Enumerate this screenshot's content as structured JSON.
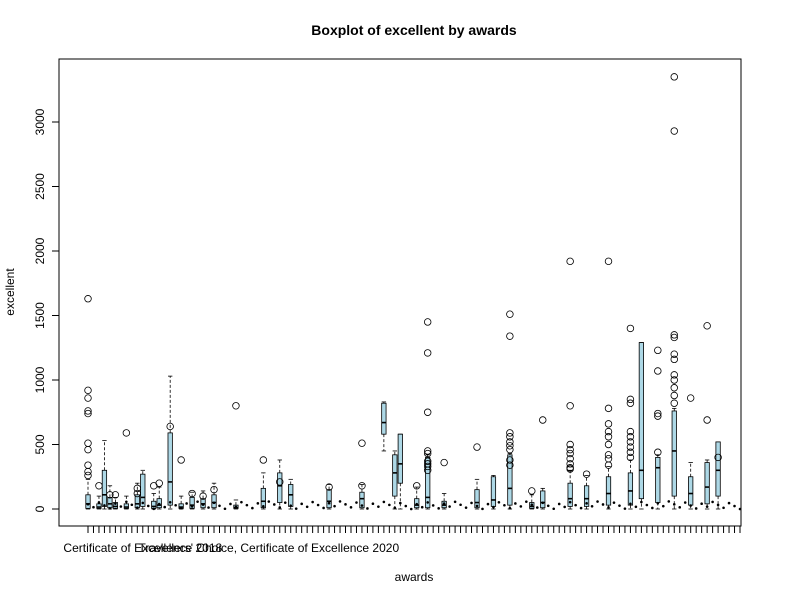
{
  "chart_data": {
    "type": "boxplot",
    "title": "Boxplot of excellent by awards",
    "xlabel": "awards",
    "ylabel": "excellent",
    "ylim": [
      -130,
      3420
    ],
    "yticks": [
      0,
      500,
      1000,
      1500,
      2000,
      2500,
      3000
    ],
    "x_tick_labels_printed": [
      {
        "category": 11,
        "label": "Certificate of Excellence 2018"
      },
      {
        "category": 34,
        "label": "Travellers' Choice, Certificate of Excellence 2020"
      }
    ],
    "category_count": 120,
    "grid": false,
    "legend": "none",
    "box_fill_color": "#add8e6",
    "series": [
      {
        "cat": 1,
        "q1": 5,
        "median": 40,
        "q3": 110,
        "lo": 0,
        "hi": 230,
        "out": [
          260,
          290,
          340,
          460,
          510,
          740,
          760,
          860,
          920,
          1630
        ]
      },
      {
        "cat": 3,
        "q1": 5,
        "median": 15,
        "q3": 40,
        "lo": 0,
        "hi": 100,
        "out": [
          180
        ]
      },
      {
        "cat": 4,
        "q1": 20,
        "median": 110,
        "q3": 300,
        "lo": 0,
        "hi": 530,
        "out": []
      },
      {
        "cat": 5,
        "q1": 10,
        "median": 40,
        "q3": 90,
        "lo": 0,
        "hi": 180,
        "out": [
          110
        ]
      },
      {
        "cat": 6,
        "q1": 5,
        "median": 20,
        "q3": 50,
        "lo": 0,
        "hi": 90,
        "out": [
          110
        ]
      },
      {
        "cat": 8,
        "q1": 5,
        "median": 15,
        "q3": 40,
        "lo": 0,
        "hi": 100,
        "out": [
          590
        ]
      },
      {
        "cat": 10,
        "q1": 10,
        "median": 40,
        "q3": 110,
        "lo": 0,
        "hi": 200,
        "out": [
          120,
          160
        ]
      },
      {
        "cat": 11,
        "q1": 20,
        "median": 90,
        "q3": 270,
        "lo": 0,
        "hi": 300,
        "out": []
      },
      {
        "cat": 13,
        "q1": 5,
        "median": 20,
        "q3": 60,
        "lo": 0,
        "hi": 120,
        "out": [
          180
        ]
      },
      {
        "cat": 14,
        "q1": 10,
        "median": 30,
        "q3": 80,
        "lo": 0,
        "hi": 170,
        "out": [
          200
        ]
      },
      {
        "cat": 16,
        "q1": 30,
        "median": 210,
        "q3": 590,
        "lo": 0,
        "hi": 1030,
        "out": [
          640
        ]
      },
      {
        "cat": 18,
        "q1": 5,
        "median": 15,
        "q3": 40,
        "lo": 0,
        "hi": 100,
        "out": [
          380
        ]
      },
      {
        "cat": 20,
        "q1": 5,
        "median": 30,
        "q3": 90,
        "lo": 0,
        "hi": 130,
        "out": [
          120
        ]
      },
      {
        "cat": 22,
        "q1": 10,
        "median": 40,
        "q3": 80,
        "lo": 0,
        "hi": 140,
        "out": [
          100
        ]
      },
      {
        "cat": 24,
        "q1": 10,
        "median": 50,
        "q3": 110,
        "lo": 0,
        "hi": 200,
        "out": [
          150
        ]
      },
      {
        "cat": 28,
        "q1": 5,
        "median": 10,
        "q3": 30,
        "lo": 0,
        "hi": 70,
        "out": [
          800
        ]
      },
      {
        "cat": 33,
        "q1": 10,
        "median": 60,
        "q3": 160,
        "lo": 0,
        "hi": 280,
        "out": [
          380
        ]
      },
      {
        "cat": 36,
        "q1": 50,
        "median": 180,
        "q3": 280,
        "lo": 0,
        "hi": 380,
        "out": [
          210
        ]
      },
      {
        "cat": 38,
        "q1": 20,
        "median": 110,
        "q3": 190,
        "lo": 0,
        "hi": 230,
        "out": []
      },
      {
        "cat": 45,
        "q1": 10,
        "median": 60,
        "q3": 150,
        "lo": 0,
        "hi": 190,
        "out": [
          170
        ]
      },
      {
        "cat": 51,
        "q1": 10,
        "median": 80,
        "q3": 130,
        "lo": 0,
        "hi": 190,
        "out": [
          510,
          180
        ]
      },
      {
        "cat": 55,
        "q1": 580,
        "median": 670,
        "q3": 820,
        "lo": 450,
        "hi": 830,
        "out": []
      },
      {
        "cat": 57,
        "q1": 100,
        "median": 280,
        "q3": 420,
        "lo": 0,
        "hi": 450,
        "out": []
      },
      {
        "cat": 58,
        "q1": 200,
        "median": 350,
        "q3": 580,
        "lo": 0,
        "hi": 580,
        "out": []
      },
      {
        "cat": 61,
        "q1": 10,
        "median": 30,
        "q3": 80,
        "lo": 0,
        "hi": 170,
        "out": [
          180
        ]
      },
      {
        "cat": 63,
        "q1": 10,
        "median": 90,
        "q3": 400,
        "lo": 0,
        "hi": 420,
        "out": [
          430,
          450,
          370,
          350,
          330,
          300,
          750,
          1210,
          1450
        ]
      },
      {
        "cat": 66,
        "q1": 10,
        "median": 30,
        "q3": 60,
        "lo": 0,
        "hi": 120,
        "out": [
          360
        ]
      },
      {
        "cat": 72,
        "q1": 10,
        "median": 50,
        "q3": 150,
        "lo": 0,
        "hi": 230,
        "out": [
          480
        ]
      },
      {
        "cat": 75,
        "q1": 20,
        "median": 70,
        "q3": 250,
        "lo": 0,
        "hi": 260,
        "out": []
      },
      {
        "cat": 78,
        "q1": 30,
        "median": 160,
        "q3": 420,
        "lo": 0,
        "hi": 430,
        "out": [
          460,
          490,
          520,
          560,
          590,
          1340,
          1510,
          380,
          340
        ]
      },
      {
        "cat": 82,
        "q1": 5,
        "median": 20,
        "q3": 50,
        "lo": 0,
        "hi": 110,
        "out": [
          140
        ]
      },
      {
        "cat": 84,
        "q1": 10,
        "median": 50,
        "q3": 140,
        "lo": 0,
        "hi": 160,
        "out": [
          690
        ]
      },
      {
        "cat": 89,
        "q1": 20,
        "median": 80,
        "q3": 200,
        "lo": 0,
        "hi": 300,
        "out": [
          310,
          320,
          350,
          390,
          430,
          460,
          500,
          800,
          1920
        ]
      },
      {
        "cat": 92,
        "q1": 20,
        "median": 80,
        "q3": 180,
        "lo": 0,
        "hi": 260,
        "out": [
          270
        ]
      },
      {
        "cat": 96,
        "q1": 30,
        "median": 120,
        "q3": 250,
        "lo": 0,
        "hi": 330,
        "out": [
          340,
          390,
          420,
          500,
          560,
          600,
          660,
          780,
          1920
        ]
      },
      {
        "cat": 100,
        "q1": 30,
        "median": 140,
        "q3": 280,
        "lo": 0,
        "hi": 380,
        "out": [
          400,
          440,
          480,
          520,
          560,
          600,
          820,
          850,
          1400
        ]
      },
      {
        "cat": 102,
        "q1": 80,
        "median": 300,
        "q3": 1290,
        "lo": 0,
        "hi": 1290,
        "out": []
      },
      {
        "cat": 105,
        "q1": 50,
        "median": 320,
        "q3": 400,
        "lo": 0,
        "hi": 420,
        "out": [
          440,
          720,
          740,
          1070,
          1230
        ]
      },
      {
        "cat": 108,
        "q1": 100,
        "median": 450,
        "q3": 760,
        "lo": 0,
        "hi": 780,
        "out": [
          820,
          880,
          940,
          1000,
          1040,
          1160,
          1200,
          1330,
          1350,
          2930,
          3350
        ]
      },
      {
        "cat": 111,
        "q1": 30,
        "median": 120,
        "q3": 250,
        "lo": 0,
        "hi": 360,
        "out": [
          860
        ]
      },
      {
        "cat": 114,
        "q1": 40,
        "median": 170,
        "q3": 360,
        "lo": 0,
        "hi": 380,
        "out": [
          690,
          1420
        ]
      },
      {
        "cat": 116,
        "q1": 100,
        "median": 300,
        "q3": 520,
        "lo": 0,
        "hi": 520,
        "out": [
          400
        ]
      }
    ]
  }
}
